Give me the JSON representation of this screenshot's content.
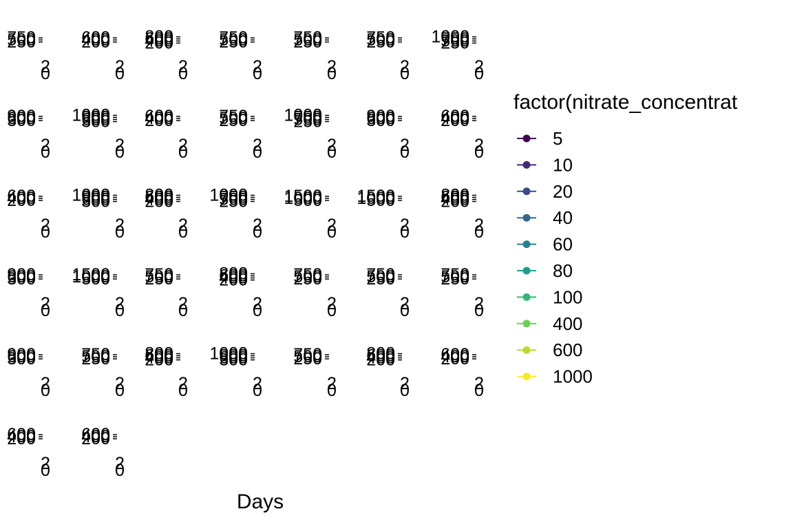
{
  "chart_data": {
    "type": "line",
    "xlabel": "Days",
    "legend": {
      "title": "factor(nitrate_concentrat",
      "placement": "right",
      "entries": [
        {
          "label": "5",
          "color": "#440154"
        },
        {
          "label": "10",
          "color": "#482878"
        },
        {
          "label": "20",
          "color": "#3E4A89"
        },
        {
          "label": "40",
          "color": "#31688E"
        },
        {
          "label": "60",
          "color": "#26828E"
        },
        {
          "label": "80",
          "color": "#1F9E89"
        },
        {
          "label": "100",
          "color": "#35B779"
        },
        {
          "label": "400",
          "color": "#6DCD59"
        },
        {
          "label": "600",
          "color": "#B4DE2C"
        },
        {
          "label": "1000",
          "color": "#FDE725"
        }
      ]
    },
    "panels": [
      {
        "y_ticks": [
          "750",
          "500",
          "250"
        ],
        "x_ticks": [
          "0",
          "2"
        ]
      },
      {
        "y_ticks": [
          "600",
          "400",
          "200"
        ],
        "x_ticks": [
          "0",
          "2"
        ]
      },
      {
        "y_ticks": [
          "800",
          "600",
          "400",
          "200"
        ],
        "x_ticks": [
          "0",
          "2"
        ]
      },
      {
        "y_ticks": [
          "750",
          "500",
          "250"
        ],
        "x_ticks": [
          "0",
          "2"
        ]
      },
      {
        "y_ticks": [
          "750",
          "500",
          "250"
        ],
        "x_ticks": [
          "0",
          "2"
        ]
      },
      {
        "y_ticks": [
          "750",
          "500",
          "250"
        ],
        "x_ticks": [
          "0",
          "2"
        ]
      },
      {
        "y_ticks": [
          "1000",
          "750",
          "500",
          "250"
        ],
        "x_ticks": [
          "0",
          "2"
        ]
      },
      {
        "y_ticks": [
          "900",
          "600",
          "300"
        ],
        "x_ticks": [
          "0",
          "2"
        ]
      },
      {
        "y_ticks": [
          "1000",
          "900",
          "600",
          "300"
        ],
        "x_ticks": [
          "0",
          "2"
        ]
      },
      {
        "y_ticks": [
          "600",
          "400",
          "200"
        ],
        "x_ticks": [
          "0",
          "2"
        ]
      },
      {
        "y_ticks": [
          "750",
          "500",
          "250"
        ],
        "x_ticks": [
          "0",
          "2"
        ]
      },
      {
        "y_ticks": [
          "1000",
          "750",
          "500",
          "250"
        ],
        "x_ticks": [
          "0",
          "2"
        ]
      },
      {
        "y_ticks": [
          "900",
          "600",
          "300"
        ],
        "x_ticks": [
          "0",
          "2"
        ]
      },
      {
        "y_ticks": [
          "600",
          "400",
          "200"
        ],
        "x_ticks": [
          "0",
          "2"
        ]
      },
      {
        "y_ticks": [
          "600",
          "400",
          "200"
        ],
        "x_ticks": [
          "0",
          "2"
        ]
      },
      {
        "y_ticks": [
          "1000",
          "900",
          "600",
          "300"
        ],
        "x_ticks": [
          "0",
          "2"
        ]
      },
      {
        "y_ticks": [
          "800",
          "600",
          "400",
          "200"
        ],
        "x_ticks": [
          "0",
          "2"
        ]
      },
      {
        "y_ticks": [
          "1000",
          "750",
          "500",
          "250"
        ],
        "x_ticks": [
          "0",
          "2"
        ]
      },
      {
        "y_ticks": [
          "1500",
          "1000",
          "500"
        ],
        "x_ticks": [
          "0",
          "2"
        ]
      },
      {
        "y_ticks": [
          "1500",
          "1000",
          "500"
        ],
        "x_ticks": [
          "0",
          "2"
        ]
      },
      {
        "y_ticks": [
          "800",
          "600",
          "400",
          "200"
        ],
        "x_ticks": [
          "0",
          "2"
        ]
      },
      {
        "y_ticks": [
          "900",
          "600",
          "300"
        ],
        "x_ticks": [
          "0",
          "2"
        ]
      },
      {
        "y_ticks": [
          "1500",
          "1000",
          "500"
        ],
        "x_ticks": [
          "0",
          "2"
        ]
      },
      {
        "y_ticks": [
          "750",
          "500",
          "250"
        ],
        "x_ticks": [
          "0",
          "2"
        ]
      },
      {
        "y_ticks": [
          "800",
          "600",
          "400",
          "200"
        ],
        "x_ticks": [
          "0",
          "2"
        ]
      },
      {
        "y_ticks": [
          "750",
          "500",
          "250"
        ],
        "x_ticks": [
          "0",
          "2"
        ]
      },
      {
        "y_ticks": [
          "750",
          "500",
          "250"
        ],
        "x_ticks": [
          "0",
          "2"
        ]
      },
      {
        "y_ticks": [
          "750",
          "500",
          "250"
        ],
        "x_ticks": [
          "0",
          "2"
        ]
      },
      {
        "y_ticks": [
          "900",
          "600",
          "300"
        ],
        "x_ticks": [
          "0",
          "2"
        ]
      },
      {
        "y_ticks": [
          "750",
          "500",
          "250"
        ],
        "x_ticks": [
          "0",
          "2"
        ]
      },
      {
        "y_ticks": [
          "800",
          "600",
          "400",
          "200"
        ],
        "x_ticks": [
          "0",
          "2"
        ]
      },
      {
        "y_ticks": [
          "1000",
          "900",
          "600",
          "300"
        ],
        "x_ticks": [
          "0",
          "2"
        ]
      },
      {
        "y_ticks": [
          "750",
          "500",
          "250"
        ],
        "x_ticks": [
          "0",
          "2"
        ]
      },
      {
        "y_ticks": [
          "800",
          "600",
          "400",
          "200"
        ],
        "x_ticks": [
          "0",
          "2"
        ]
      },
      {
        "y_ticks": [
          "600",
          "400",
          "200"
        ],
        "x_ticks": [
          "0",
          "2"
        ]
      },
      {
        "y_ticks": [
          "600",
          "400",
          "200"
        ],
        "x_ticks": [
          "0",
          "2"
        ]
      },
      {
        "y_ticks": [
          "600",
          "400",
          "200"
        ],
        "x_ticks": [
          "0",
          "2"
        ]
      }
    ]
  }
}
